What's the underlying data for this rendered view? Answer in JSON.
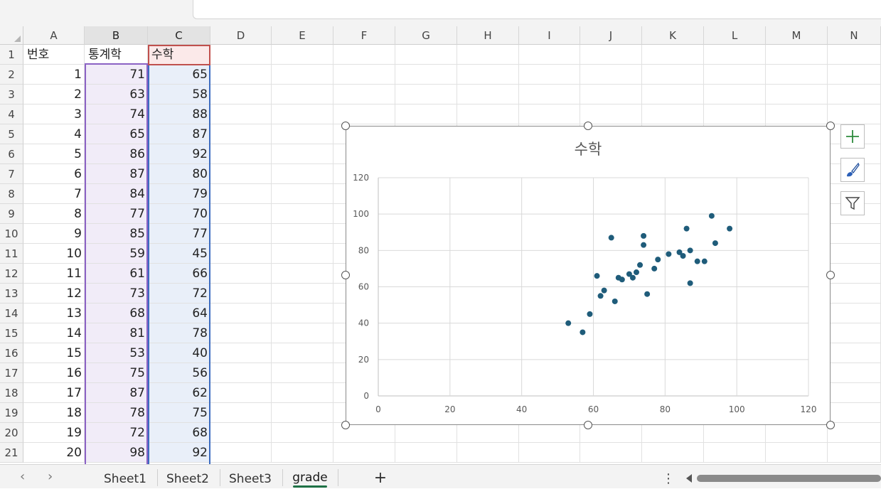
{
  "columns": [
    "A",
    "B",
    "C",
    "D",
    "E",
    "F",
    "G",
    "H",
    "I",
    "J",
    "K",
    "L",
    "M",
    "N"
  ],
  "rows": [
    [
      "번호",
      "통계학",
      "수학"
    ],
    [
      "1",
      "71",
      "65"
    ],
    [
      "2",
      "63",
      "58"
    ],
    [
      "3",
      "74",
      "88"
    ],
    [
      "4",
      "65",
      "87"
    ],
    [
      "5",
      "86",
      "92"
    ],
    [
      "6",
      "87",
      "80"
    ],
    [
      "7",
      "84",
      "79"
    ],
    [
      "8",
      "77",
      "70"
    ],
    [
      "9",
      "85",
      "77"
    ],
    [
      "10",
      "59",
      "45"
    ],
    [
      "11",
      "61",
      "66"
    ],
    [
      "12",
      "73",
      "72"
    ],
    [
      "13",
      "68",
      "64"
    ],
    [
      "14",
      "81",
      "78"
    ],
    [
      "15",
      "53",
      "40"
    ],
    [
      "16",
      "75",
      "56"
    ],
    [
      "17",
      "87",
      "62"
    ],
    [
      "18",
      "78",
      "75"
    ],
    [
      "19",
      "72",
      "68"
    ],
    [
      "20",
      "98",
      "92"
    ]
  ],
  "sheet_tabs": [
    "Sheet1",
    "Sheet2",
    "Sheet3",
    "grade"
  ],
  "active_tab": "grade",
  "add_sheet_label": "+",
  "more_label": "⋮",
  "side_buttons": [
    "chart-elements-icon",
    "chart-styles-icon",
    "chart-filters-icon"
  ],
  "colors": {
    "marker": "#1f5c7a",
    "accent": "#1e7145",
    "selection_b": "#8b62c4",
    "selection_c": "#3d6cc0",
    "header_sel": "#c0504d"
  },
  "chart_data": {
    "type": "scatter",
    "title": "수학",
    "xlim": [
      0,
      120
    ],
    "ylim": [
      0,
      120
    ],
    "xticks": [
      "0",
      "20",
      "40",
      "60",
      "80",
      "100",
      "120"
    ],
    "yticks": [
      "0",
      "20",
      "40",
      "60",
      "80",
      "100",
      "120"
    ],
    "grid": true,
    "points": [
      [
        53,
        40
      ],
      [
        57,
        35
      ],
      [
        59,
        45
      ],
      [
        61,
        66
      ],
      [
        62,
        55
      ],
      [
        63,
        58
      ],
      [
        65,
        87
      ],
      [
        66,
        52
      ],
      [
        67,
        65
      ],
      [
        68,
        64
      ],
      [
        70,
        67
      ],
      [
        71,
        65
      ],
      [
        72,
        68
      ],
      [
        73,
        72
      ],
      [
        74,
        88
      ],
      [
        74,
        83
      ],
      [
        75,
        56
      ],
      [
        77,
        70
      ],
      [
        78,
        75
      ],
      [
        81,
        78
      ],
      [
        84,
        79
      ],
      [
        85,
        77
      ],
      [
        86,
        92
      ],
      [
        87,
        80
      ],
      [
        87,
        62
      ],
      [
        89,
        74
      ],
      [
        91,
        74
      ],
      [
        93,
        99
      ],
      [
        94,
        84
      ],
      [
        98,
        92
      ]
    ]
  }
}
